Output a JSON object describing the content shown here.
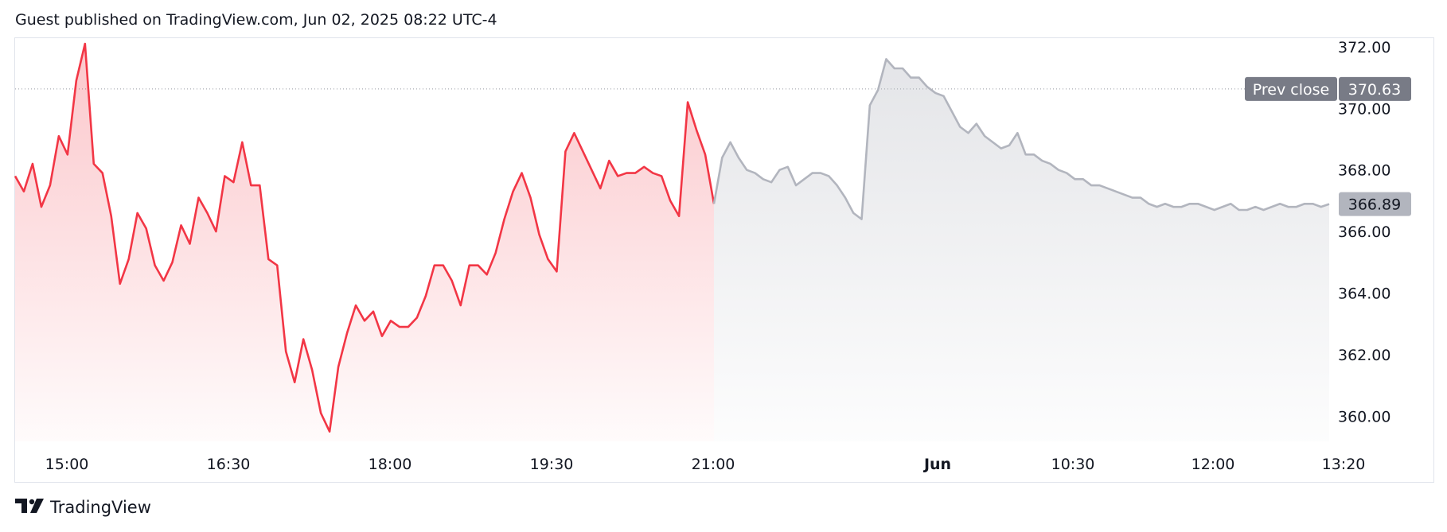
{
  "header": {
    "published": "Guest published on TradingView.com, Jun 02, 2025 08:22 UTC-4"
  },
  "footer": {
    "brand": "TradingView",
    "logo_icon": "tradingview-logo-icon"
  },
  "chart_data": {
    "type": "area",
    "y_ticks": [
      "372.00",
      "370.00",
      "368.00",
      "366.00",
      "364.00",
      "362.00",
      "360.00"
    ],
    "x_ticks": [
      "15:00",
      "16:30",
      "18:00",
      "19:30",
      "21:00",
      "Jun",
      "10:30",
      "12:00",
      "13:20"
    ],
    "ylim": [
      359.0,
      372.3
    ],
    "prev_close": {
      "label": "Prev close",
      "value": "370.63"
    },
    "last_price": {
      "value": "366.89"
    },
    "colors": {
      "session_line": "#f23645",
      "extended_line": "#b2b5be",
      "prev_close_badge": "#787b86",
      "last_badge": "#b2b5be"
    },
    "series": [
      {
        "segment": "regular",
        "x": [
          "14:20",
          "14:25",
          "14:30",
          "14:35",
          "14:40",
          "14:45",
          "14:50",
          "14:55",
          "15:00",
          "15:05",
          "15:10",
          "15:15",
          "15:20",
          "15:25",
          "15:30",
          "15:35",
          "15:40",
          "15:45",
          "15:50",
          "15:55",
          "16:00",
          "16:05",
          "16:10",
          "16:15",
          "16:20",
          "16:25",
          "16:30",
          "16:35",
          "16:40",
          "16:45",
          "16:50",
          "16:55",
          "17:00",
          "17:05",
          "17:10",
          "17:15",
          "17:20",
          "17:25",
          "17:30",
          "17:35",
          "17:40",
          "17:45",
          "17:50",
          "17:55",
          "18:00",
          "18:05",
          "18:10",
          "18:15",
          "18:20",
          "18:25",
          "18:30",
          "18:35",
          "18:40",
          "18:45",
          "18:50",
          "18:55",
          "19:00",
          "19:05",
          "19:10",
          "19:15",
          "19:20",
          "19:25",
          "19:30",
          "19:35",
          "19:40",
          "19:45",
          "19:50",
          "19:55",
          "20:00",
          "20:05",
          "20:10",
          "20:15",
          "20:20",
          "20:25",
          "20:30",
          "20:35",
          "20:40",
          "20:45",
          "20:50",
          "20:55",
          "21:00"
        ],
        "values": [
          367.8,
          367.3,
          368.2,
          366.8,
          367.5,
          369.1,
          368.5,
          370.9,
          372.1,
          368.2,
          367.9,
          366.5,
          364.3,
          365.1,
          366.6,
          366.1,
          364.9,
          364.4,
          365.0,
          366.2,
          365.6,
          367.1,
          366.6,
          366.0,
          367.8,
          367.6,
          368.9,
          367.5,
          367.5,
          365.1,
          364.9,
          362.1,
          361.1,
          362.5,
          361.5,
          360.1,
          359.5,
          361.6,
          362.7,
          363.6,
          363.1,
          363.4,
          362.6,
          363.1,
          362.9,
          362.9,
          363.2,
          363.9,
          364.9,
          364.9,
          364.4,
          363.6,
          364.9,
          364.9,
          364.6,
          365.3,
          366.4,
          367.3,
          367.9,
          367.1,
          365.9,
          365.1,
          364.7,
          368.6,
          369.2,
          368.6,
          368.0,
          367.4,
          368.3,
          367.8,
          367.9,
          367.9,
          368.1,
          367.9,
          367.8,
          367.0,
          366.5,
          370.2,
          369.3,
          368.5,
          366.9
        ]
      },
      {
        "segment": "extended",
        "x": [
          "21:05",
          "21:10",
          "21:15",
          "21:20",
          "21:25",
          "21:30",
          "21:35",
          "21:40",
          "21:45",
          "21:50",
          "21:55",
          "22:00",
          "22:05",
          "22:10",
          "22:15",
          "22:20",
          "22:25",
          "22:30",
          "22:35",
          "22:40",
          "22:45",
          "22:50",
          "Jun",
          "09:05",
          "09:10",
          "09:15",
          "09:20",
          "09:25",
          "09:30",
          "09:35",
          "09:40",
          "09:45",
          "09:50",
          "09:55",
          "10:00",
          "10:05",
          "10:10",
          "10:15",
          "10:20",
          "10:25",
          "10:30",
          "10:35",
          "10:40",
          "10:45",
          "10:50",
          "10:55",
          "11:00",
          "11:05",
          "11:10",
          "11:15",
          "11:20",
          "11:25",
          "11:30",
          "11:35",
          "11:40",
          "11:45",
          "11:50",
          "11:55",
          "12:00",
          "12:05",
          "12:10",
          "12:15",
          "12:20",
          "12:25",
          "12:30",
          "12:35",
          "12:40",
          "12:45",
          "12:50",
          "12:55",
          "13:00",
          "13:05",
          "13:10",
          "13:15",
          "13:20"
        ],
        "values": [
          368.4,
          368.9,
          368.4,
          368.0,
          367.9,
          367.7,
          367.6,
          368.0,
          368.1,
          367.5,
          367.7,
          367.9,
          367.9,
          367.8,
          367.5,
          367.1,
          366.6,
          366.4,
          370.1,
          370.6,
          371.6,
          371.3,
          371.3,
          371.0,
          371.0,
          370.7,
          370.5,
          370.4,
          369.9,
          369.4,
          369.2,
          369.5,
          369.1,
          368.9,
          368.7,
          368.8,
          369.2,
          368.5,
          368.5,
          368.3,
          368.2,
          368.0,
          367.9,
          367.7,
          367.7,
          367.5,
          367.5,
          367.4,
          367.3,
          367.2,
          367.1,
          367.1,
          366.9,
          366.8,
          366.9,
          366.8,
          366.8,
          366.9,
          366.9,
          366.8,
          366.7,
          366.8,
          366.9,
          366.7,
          366.7,
          366.8,
          366.7,
          366.8,
          366.9,
          366.8,
          366.8,
          366.9,
          366.9,
          366.8,
          366.89
        ]
      }
    ]
  }
}
